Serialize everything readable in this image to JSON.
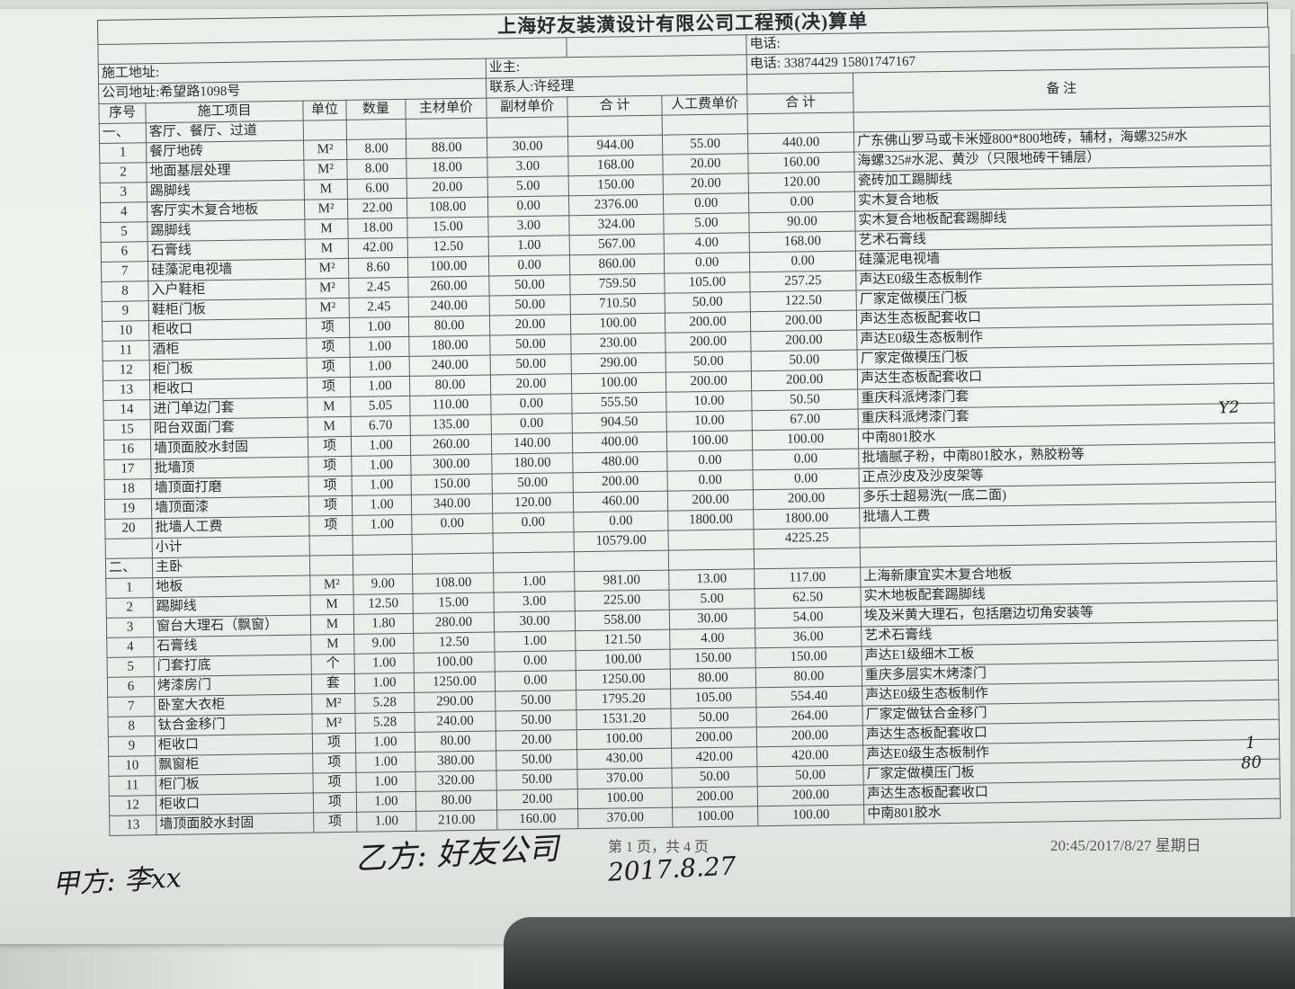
{
  "title": "上海好友装潢设计有限公司工程预(决)算单",
  "info": {
    "site_address": "施工地址:",
    "owner": "业主:",
    "phone_label": "电话:",
    "company_address": "公司地址:希望路1098号",
    "contact": "联系人:许经理",
    "company_phone": "电话: 33874429 15801747167"
  },
  "columns": [
    "序号",
    "施工项目",
    "单位",
    "数量",
    "主材单价",
    "副材单价",
    "合 计",
    "人工费单价",
    "合 计",
    "备    注"
  ],
  "sections": [
    {
      "heading_no": "一、",
      "heading": "客厅、餐厅、过道",
      "rows": [
        [
          "1",
          "餐厅地砖",
          "M²",
          "8.00",
          "88.00",
          "30.00",
          "944.00",
          "55.00",
          "440.00",
          "广东佛山罗马或卡米娅800*800地砖，辅材，海螺325#水"
        ],
        [
          "2",
          "地面基层处理",
          "M²",
          "8.00",
          "18.00",
          "3.00",
          "168.00",
          "20.00",
          "160.00",
          "海螺325#水泥、黄沙（只限地砖干铺层）"
        ],
        [
          "3",
          "踢脚线",
          "M",
          "6.00",
          "20.00",
          "5.00",
          "150.00",
          "20.00",
          "120.00",
          "瓷砖加工踢脚线"
        ],
        [
          "4",
          "客厅实木复合地板",
          "M²",
          "22.00",
          "108.00",
          "0.00",
          "2376.00",
          "0.00",
          "0.00",
          "实木复合地板"
        ],
        [
          "5",
          "踢脚线",
          "M",
          "18.00",
          "15.00",
          "3.00",
          "324.00",
          "5.00",
          "90.00",
          "实木复合地板配套踢脚线"
        ],
        [
          "6",
          "石膏线",
          "M",
          "42.00",
          "12.50",
          "1.00",
          "567.00",
          "4.00",
          "168.00",
          "艺术石膏线"
        ],
        [
          "7",
          "硅藻泥电视墙",
          "M²",
          "8.60",
          "100.00",
          "0.00",
          "860.00",
          "0.00",
          "0.00",
          "硅藻泥电视墙"
        ],
        [
          "8",
          "入户鞋柜",
          "M²",
          "2.45",
          "260.00",
          "50.00",
          "759.50",
          "105.00",
          "257.25",
          "声达E0级生态板制作"
        ],
        [
          "9",
          "鞋柜门板",
          "M²",
          "2.45",
          "240.00",
          "50.00",
          "710.50",
          "50.00",
          "122.50",
          "厂家定做模压门板"
        ],
        [
          "10",
          "柜收口",
          "项",
          "1.00",
          "80.00",
          "20.00",
          "100.00",
          "200.00",
          "200.00",
          "声达生态板配套收口"
        ],
        [
          "11",
          "酒柜",
          "项",
          "1.00",
          "180.00",
          "50.00",
          "230.00",
          "200.00",
          "200.00",
          "声达E0级生态板制作"
        ],
        [
          "12",
          "柜门板",
          "项",
          "1.00",
          "240.00",
          "50.00",
          "290.00",
          "50.00",
          "50.00",
          "厂家定做模压门板"
        ],
        [
          "13",
          "柜收口",
          "项",
          "1.00",
          "80.00",
          "20.00",
          "100.00",
          "200.00",
          "200.00",
          "声达生态板配套收口"
        ],
        [
          "14",
          "进门单边门套",
          "M",
          "5.05",
          "110.00",
          "0.00",
          "555.50",
          "10.00",
          "50.50",
          "重庆科派烤漆门套"
        ],
        [
          "15",
          "阳台双面门套",
          "M",
          "6.70",
          "135.00",
          "0.00",
          "904.50",
          "10.00",
          "67.00",
          "重庆科派烤漆门套"
        ],
        [
          "16",
          "墙顶面胶水封固",
          "项",
          "1.00",
          "260.00",
          "140.00",
          "400.00",
          "100.00",
          "100.00",
          "中南801胶水"
        ],
        [
          "17",
          "批墙顶",
          "项",
          "1.00",
          "300.00",
          "180.00",
          "480.00",
          "0.00",
          "0.00",
          "批墙腻子粉，中南801胶水，熟胶粉等"
        ],
        [
          "18",
          "墙顶面打磨",
          "项",
          "1.00",
          "150.00",
          "50.00",
          "200.00",
          "0.00",
          "0.00",
          "正点沙皮及沙皮架等"
        ],
        [
          "19",
          "墙顶面漆",
          "项",
          "1.00",
          "340.00",
          "120.00",
          "460.00",
          "200.00",
          "200.00",
          "多乐士超易洗(一底二面)"
        ],
        [
          "20",
          "批墙人工费",
          "项",
          "1.00",
          "0.00",
          "0.00",
          "0.00",
          "1800.00",
          "1800.00",
          "批墙人工费"
        ]
      ],
      "subtotal_label": "小计",
      "subtotal_material": "10579.00",
      "subtotal_labor": "4225.25"
    },
    {
      "heading_no": "二、",
      "heading": "主卧",
      "rows": [
        [
          "1",
          "地板",
          "M²",
          "9.00",
          "108.00",
          "1.00",
          "981.00",
          "13.00",
          "117.00",
          "上海新康宜实木复合地板"
        ],
        [
          "2",
          "踢脚线",
          "M",
          "12.50",
          "15.00",
          "3.00",
          "225.00",
          "5.00",
          "62.50",
          "实木地板配套踢脚线"
        ],
        [
          "3",
          "窗台大理石（飘窗）",
          "M",
          "1.80",
          "280.00",
          "30.00",
          "558.00",
          "30.00",
          "54.00",
          "埃及米黄大理石，包括磨边切角安装等"
        ],
        [
          "4",
          "石膏线",
          "M",
          "9.00",
          "12.50",
          "1.00",
          "121.50",
          "4.00",
          "36.00",
          "艺术石膏线"
        ],
        [
          "5",
          "门套打底",
          "个",
          "1.00",
          "100.00",
          "0.00",
          "100.00",
          "150.00",
          "150.00",
          "声达E1级细木工板"
        ],
        [
          "6",
          "烤漆房门",
          "套",
          "1.00",
          "1250.00",
          "0.00",
          "1250.00",
          "80.00",
          "80.00",
          "重庆多层实木烤漆门"
        ],
        [
          "7",
          "卧室大衣柜",
          "M²",
          "5.28",
          "290.00",
          "50.00",
          "1795.20",
          "105.00",
          "554.40",
          "声达E0级生态板制作"
        ],
        [
          "8",
          "钛合金移门",
          "M²",
          "5.28",
          "240.00",
          "50.00",
          "1531.20",
          "50.00",
          "264.00",
          "厂家定做钛合金移门"
        ],
        [
          "9",
          "柜收口",
          "项",
          "1.00",
          "80.00",
          "20.00",
          "100.00",
          "200.00",
          "200.00",
          "声达生态板配套收口"
        ],
        [
          "10",
          "飘窗柜",
          "项",
          "1.00",
          "380.00",
          "50.00",
          "430.00",
          "420.00",
          "420.00",
          "声达E0级生态板制作"
        ],
        [
          "11",
          "柜门板",
          "项",
          "1.00",
          "320.00",
          "50.00",
          "370.00",
          "50.00",
          "50.00",
          "厂家定做模压门板"
        ],
        [
          "12",
          "柜收口",
          "项",
          "1.00",
          "80.00",
          "20.00",
          "100.00",
          "200.00",
          "200.00",
          "声达生态板配套收口"
        ],
        [
          "13",
          "墙顶面胶水封固",
          "项",
          "1.00",
          "210.00",
          "160.00",
          "370.00",
          "100.00",
          "100.00",
          "中南801胶水"
        ]
      ]
    }
  ],
  "footer": {
    "page": "第 1 页，共 4 页",
    "printed_at": "20:45/2017/8/27 星期日"
  },
  "handwriting": {
    "party_a": "甲方: 李xx",
    "party_b": "乙方: 好友公司",
    "date": "2017.8.27",
    "margin_mark_1": "Y2",
    "margin_mark_2": "1",
    "margin_mark_3": "80"
  }
}
